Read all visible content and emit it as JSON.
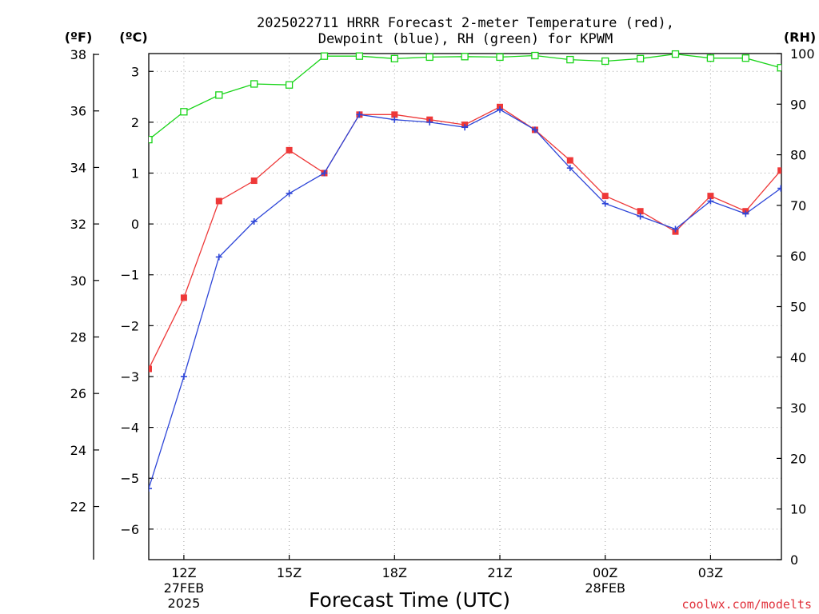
{
  "page": {
    "title_line1": "2025022711 HRRR Forecast 2-meter Temperature (red),",
    "title_line2": "Dewpoint (blue), RH (green) for KPWM",
    "credit": "coolwx.com/modelts"
  },
  "chart_data": {
    "type": "line",
    "title": "2025022711 HRRR Forecast 2-meter Temperature (red), Dewpoint (blue), RH (green) for KPWM",
    "xlabel": "Forecast Time (UTC)",
    "units": {
      "fahrenheit": "(ºF)",
      "celsius": "(ºC)",
      "rh": "(RH)"
    },
    "x": [
      "11Z",
      "12Z",
      "13Z",
      "14Z",
      "15Z",
      "16Z",
      "17Z",
      "18Z",
      "19Z",
      "20Z",
      "21Z",
      "22Z",
      "23Z",
      "00Z",
      "01Z",
      "02Z",
      "03Z",
      "04Z",
      "05Z"
    ],
    "x_ticks": [
      {
        "label": "12Z",
        "date": "27FEB",
        "year": "2025"
      },
      {
        "label": "15Z"
      },
      {
        "label": "18Z"
      },
      {
        "label": "21Z"
      },
      {
        "label": "00Z",
        "date": "28FEB"
      },
      {
        "label": "03Z"
      }
    ],
    "y_celsius_ticks": [
      "-6",
      "-5",
      "-4",
      "-3",
      "-2",
      "-1",
      "0",
      "1",
      "2",
      "3"
    ],
    "y_fahrenheit_ticks": [
      "22",
      "24",
      "26",
      "28",
      "30",
      "32",
      "34",
      "36",
      "38"
    ],
    "y_rh_ticks": [
      "0",
      "10",
      "20",
      "30",
      "40",
      "50",
      "60",
      "70",
      "80",
      "90",
      "100"
    ],
    "ylim_celsius": [
      -6.6,
      3.35
    ],
    "ylim_rh": [
      0,
      100
    ],
    "grid": true,
    "series": [
      {
        "name": "Temperature",
        "color": "#ee3838",
        "marker": "filled-square",
        "axis": "celsius",
        "values": [
          -2.85,
          -1.45,
          0.45,
          0.85,
          1.45,
          1.0,
          2.15,
          2.15,
          2.05,
          1.95,
          2.3,
          1.85,
          1.25,
          0.55,
          0.25,
          -0.15,
          0.55,
          0.25,
          1.05
        ]
      },
      {
        "name": "Dewpoint",
        "color": "#2e46d8",
        "marker": "plus",
        "axis": "celsius",
        "values": [
          -5.2,
          -3.0,
          -0.65,
          0.05,
          0.6,
          1.0,
          2.15,
          2.05,
          2.0,
          1.9,
          2.25,
          1.85,
          1.1,
          0.4,
          0.15,
          -0.1,
          0.45,
          0.2,
          0.7
        ]
      },
      {
        "name": "RH",
        "color": "#18d418",
        "marker": "open-square",
        "axis": "rh",
        "values": [
          83,
          88.5,
          91.8,
          94,
          93.8,
          99.5,
          99.5,
          99,
          99.3,
          99.4,
          99.3,
          99.6,
          98.8,
          98.5,
          99,
          99.9,
          99.1,
          99.1,
          97.2
        ]
      }
    ]
  }
}
